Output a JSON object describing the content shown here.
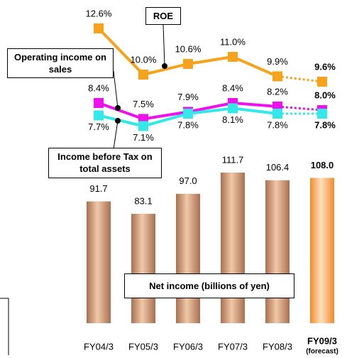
{
  "chart_data": {
    "type": "bar",
    "categories": [
      "FY04/3",
      "FY05/3",
      "FY06/3",
      "FY07/3",
      "FY08/3",
      "FY09/3"
    ],
    "annotations": [
      "(forecast)"
    ],
    "series": [
      {
        "name": "Net income (billions of yen)",
        "type": "bar",
        "color": "#c8906a",
        "forecast_color": "#f9a24a",
        "values": [
          91.7,
          83.1,
          97.0,
          111.7,
          106.4,
          108.0
        ],
        "value_labels": [
          "91.7",
          "83.1",
          "97.0",
          "111.7",
          "106.4",
          "108.0"
        ]
      },
      {
        "name": "ROE",
        "type": "line",
        "color": "#f7a21b",
        "values": [
          12.6,
          10.0,
          10.6,
          11.0,
          9.9,
          9.6
        ],
        "value_labels": [
          "12.6%",
          "10.0%",
          "10.6%",
          "11.0%",
          "9.9%",
          "9.6%"
        ]
      },
      {
        "name": "Operating income on sales",
        "type": "line",
        "color": "#ee11ee",
        "values": [
          8.4,
          7.5,
          7.9,
          8.4,
          8.2,
          8.0
        ],
        "value_labels": [
          "8.4%",
          "7.5%",
          "7.9%",
          "8.4%",
          "8.2%",
          "8.0%"
        ]
      },
      {
        "name": "Income before Tax on total assets",
        "type": "line",
        "color": "#33e8e8",
        "values": [
          7.7,
          7.1,
          7.8,
          8.1,
          7.8,
          7.8
        ],
        "value_labels": [
          "7.7%",
          "7.1%",
          "7.8%",
          "8.1%",
          "7.8%",
          "7.8%"
        ]
      }
    ]
  }
}
